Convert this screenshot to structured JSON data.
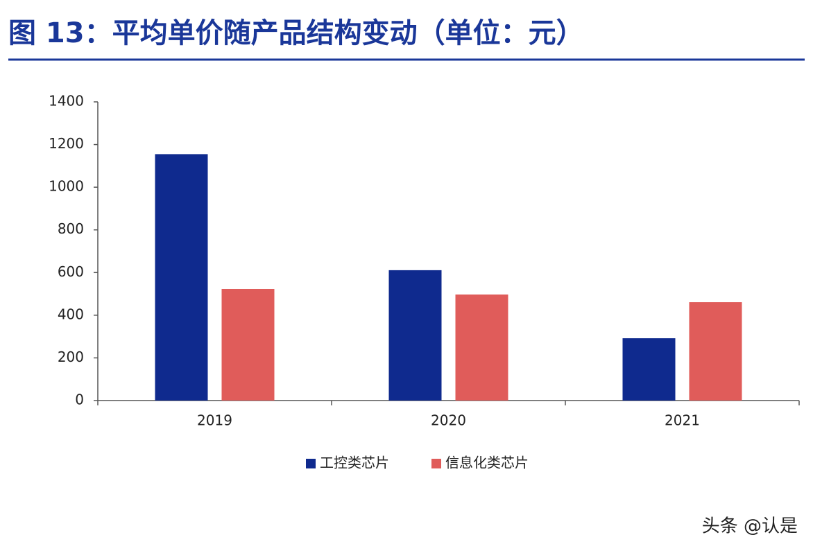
{
  "chart_data": {
    "type": "bar",
    "title": "图 13：平均单价随产品结构变动（单位：元）",
    "categories": [
      "2019",
      "2020",
      "2021"
    ],
    "series": [
      {
        "name": "工控类芯片",
        "color": "#0f2a8e",
        "values": [
          1155,
          611,
          292
        ]
      },
      {
        "name": "信息化类芯片",
        "color": "#e05c5a",
        "values": [
          523,
          497,
          461
        ]
      }
    ],
    "ylim": [
      0,
      1400
    ],
    "yticks": [
      0,
      200,
      400,
      600,
      800,
      1000,
      1200,
      1400
    ],
    "legend": "bottom"
  },
  "watermark": "头条 @认是"
}
